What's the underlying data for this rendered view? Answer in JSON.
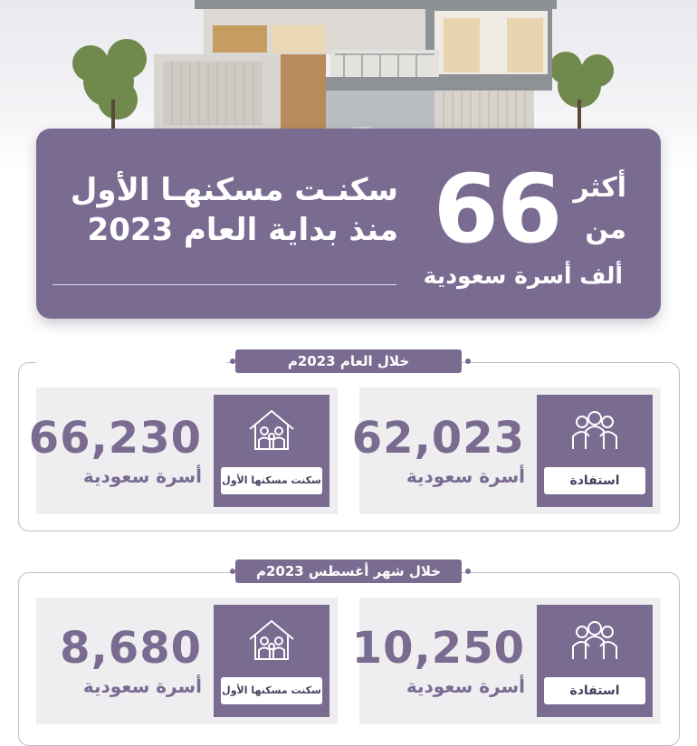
{
  "banner": {
    "line1": "سكنـت مسكنهـا الأول",
    "line2": "منذ بداية العام 2023",
    "number": "66",
    "akthar": "أكثر",
    "min": "من",
    "thousand": "ألف أسرة سعودية"
  },
  "sections": [
    {
      "title": "خلال العام 2023م",
      "cards": [
        {
          "value": "66,230",
          "label": "أسرة سعودية",
          "badge": "سكنت مسكنها الأول",
          "icon": "house-family-icon"
        },
        {
          "value": "62,023",
          "label": "أسرة سعودية",
          "badge": "استفادة",
          "icon": "family-group-icon"
        }
      ]
    },
    {
      "title": "خلال شهر أغسطس 2023م",
      "cards": [
        {
          "value": "8,680",
          "label": "أسرة سعودية",
          "badge": "سكنت مسكنها الأول",
          "icon": "house-family-icon"
        },
        {
          "value": "10,250",
          "label": "أسرة سعودية",
          "badge": "استفادة",
          "icon": "family-group-icon"
        }
      ]
    }
  ],
  "colors": {
    "accent": "#7a6b91",
    "card_bg": "#eeeef1",
    "white": "#ffffff"
  }
}
